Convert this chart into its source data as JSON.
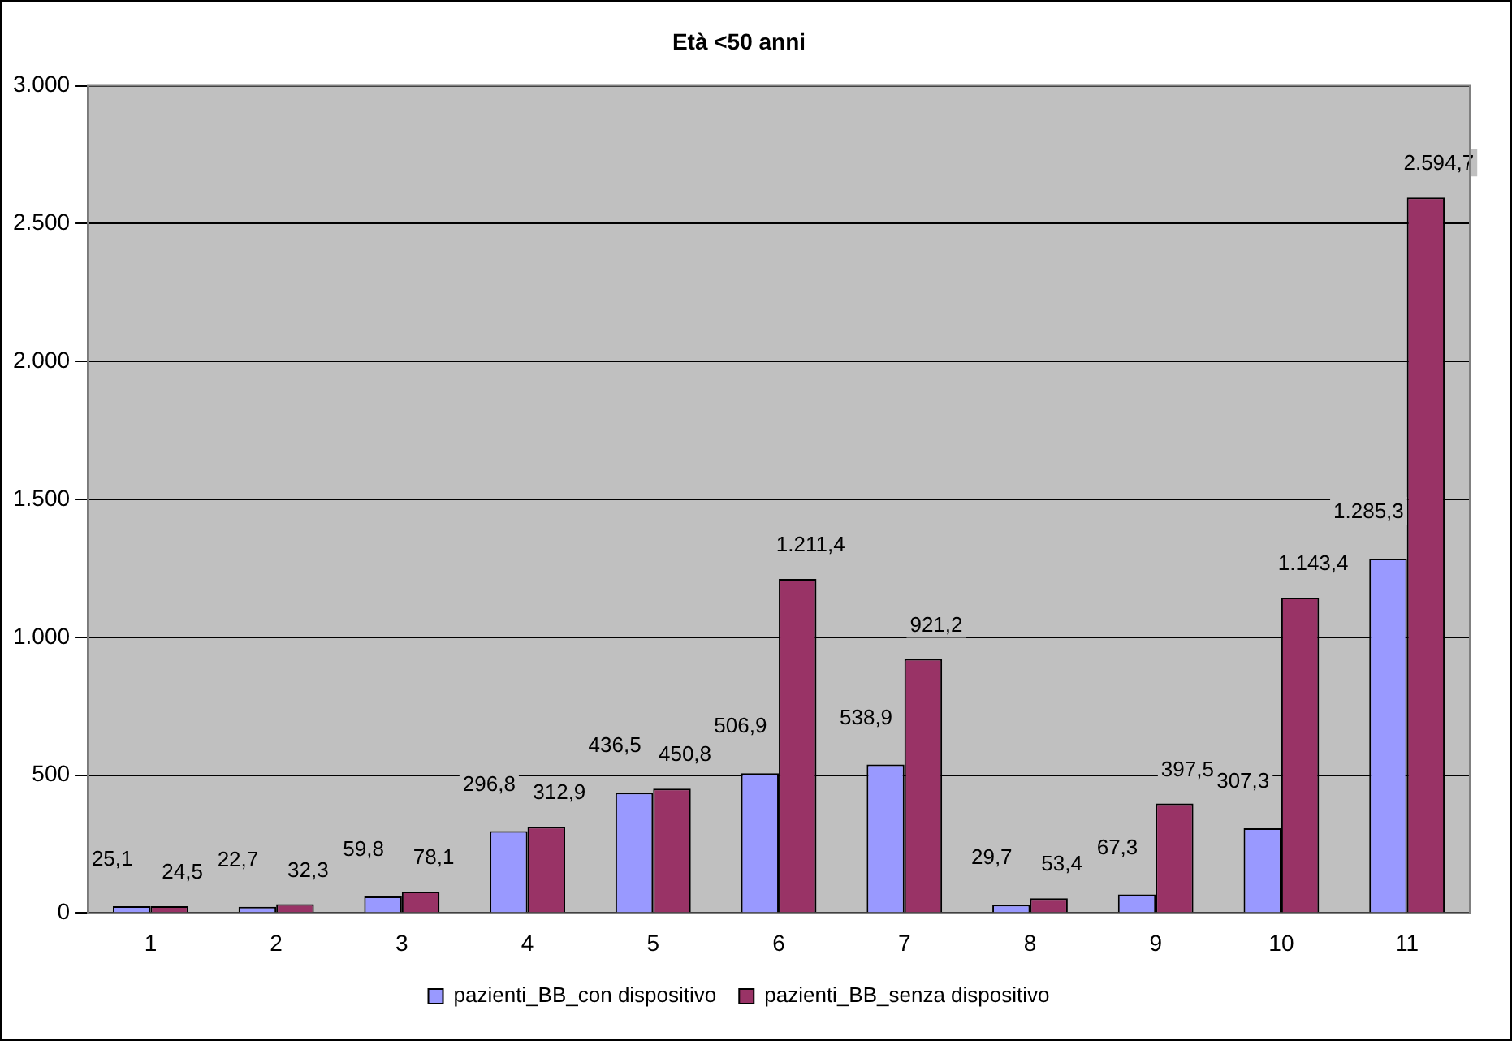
{
  "chart_data": {
    "type": "bar",
    "title": "Età <50 anni",
    "categories": [
      "1",
      "2",
      "3",
      "4",
      "5",
      "6",
      "7",
      "8",
      "9",
      "10",
      "11"
    ],
    "series": [
      {
        "name": "pazienti_BB_con dispositivo",
        "color": "#9999ff",
        "values": [
          25.1,
          22.7,
          59.8,
          296.8,
          436.5,
          506.9,
          538.9,
          29.7,
          67.3,
          307.3,
          1285.3
        ],
        "value_labels": [
          "25,1",
          "22,7",
          "59,8",
          "296,8",
          "436,5",
          "506,9",
          "538,9",
          "29,7",
          "67,3",
          "307,3",
          "1.285,3"
        ]
      },
      {
        "name": "pazienti_BB_senza dispositivo",
        "color": "#993366",
        "values": [
          24.5,
          32.3,
          78.1,
          312.9,
          450.8,
          1211.4,
          921.2,
          53.4,
          397.5,
          1143.4,
          2594.7
        ],
        "value_labels": [
          "24,5",
          "32,3",
          "78,1",
          "312,9",
          "450,8",
          "1.211,4",
          "921,2",
          "53,4",
          "397,5",
          "1.143,4",
          "2.594,7"
        ]
      }
    ],
    "ylim": [
      0,
      3000
    ],
    "yticks": [
      0,
      500,
      {
        "value": 1000,
        "label": "1.000"
      },
      {
        "value": 1500,
        "label": "1.500"
      },
      {
        "value": 2000,
        "label": "2.000"
      },
      {
        "value": 2500,
        "label": "2.500"
      },
      {
        "value": 3000,
        "label": "3.000"
      }
    ],
    "grid": "y",
    "legend": "bottom"
  }
}
